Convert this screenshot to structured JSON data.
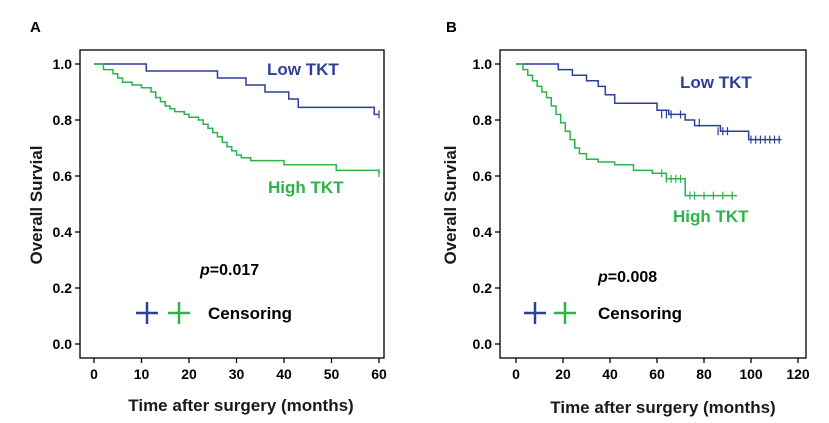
{
  "colors": {
    "low": "#2e3f98",
    "high": "#2db34a",
    "axis": "#000000"
  },
  "chart_data": [
    {
      "type": "line",
      "panel": "A",
      "xlabel": "Time after surgery (months)",
      "ylabel": "Overall Survial",
      "xlim": [
        0,
        60
      ],
      "ylim": [
        0,
        1.0
      ],
      "xticks": [
        0,
        10,
        20,
        30,
        40,
        50,
        60
      ],
      "yticks": [
        0.0,
        0.2,
        0.4,
        0.6,
        0.8,
        1.0
      ],
      "xtick_labels": [
        "0",
        "10",
        "20",
        "30",
        "40",
        "50",
        "60"
      ],
      "ytick_labels": [
        "0.0",
        "0.2",
        "0.4",
        "0.6",
        "0.8",
        "1.0"
      ],
      "p_prefix": "p",
      "p_value": "=0.017",
      "legend_text": "Censoring",
      "series": [
        {
          "name": "Low TKT",
          "color_key": "low",
          "x": [
            0,
            4,
            11,
            26,
            32,
            36,
            41,
            43,
            59,
            60
          ],
          "y": [
            1.0,
            1.0,
            0.975,
            0.95,
            0.925,
            0.9,
            0.875,
            0.845,
            0.82,
            0.82
          ],
          "censor": [
            [
              60,
              0.82
            ]
          ]
        },
        {
          "name": "High TKT",
          "color_key": "high",
          "x": [
            0,
            2,
            4,
            5,
            6,
            8,
            10,
            12,
            13,
            14,
            15,
            16,
            17,
            19,
            20,
            22,
            23,
            24,
            25,
            26,
            27,
            28,
            29,
            30,
            31,
            33,
            40,
            51,
            60
          ],
          "y": [
            1.0,
            0.98,
            0.965,
            0.95,
            0.935,
            0.925,
            0.915,
            0.9,
            0.88,
            0.865,
            0.85,
            0.84,
            0.83,
            0.82,
            0.81,
            0.8,
            0.785,
            0.77,
            0.755,
            0.74,
            0.72,
            0.705,
            0.69,
            0.675,
            0.665,
            0.655,
            0.64,
            0.62,
            0.61
          ],
          "censor": [
            [
              60,
              0.61
            ]
          ]
        }
      ]
    },
    {
      "type": "line",
      "panel": "B",
      "xlabel": "Time after surgery (months)",
      "ylabel": "Overall Survial",
      "xlim": [
        0,
        120
      ],
      "ylim": [
        0,
        1.0
      ],
      "xticks": [
        0,
        20,
        40,
        60,
        80,
        100,
        120
      ],
      "yticks": [
        0.0,
        0.2,
        0.4,
        0.6,
        0.8,
        1.0
      ],
      "xtick_labels": [
        "0",
        "20",
        "40",
        "60",
        "80",
        "100",
        "120"
      ],
      "ytick_labels": [
        "0.0",
        "0.2",
        "0.4",
        "0.6",
        "0.8",
        "1.0"
      ],
      "p_prefix": "p",
      "p_value": "=0.008",
      "legend_text": "Censoring",
      "series": [
        {
          "name": "Low TKT",
          "color_key": "low",
          "x": [
            0,
            8,
            18,
            24,
            30,
            35,
            38,
            42,
            60,
            65,
            72,
            76,
            87,
            99,
            113
          ],
          "y": [
            1.0,
            1.0,
            0.98,
            0.96,
            0.94,
            0.92,
            0.89,
            0.86,
            0.835,
            0.82,
            0.8,
            0.78,
            0.76,
            0.73,
            0.73
          ],
          "censor": [
            [
              62,
              0.82
            ],
            [
              64,
              0.82
            ],
            [
              66,
              0.82
            ],
            [
              70,
              0.82
            ],
            [
              78,
              0.79
            ],
            [
              86,
              0.76
            ],
            [
              88,
              0.76
            ],
            [
              90,
              0.76
            ],
            [
              100,
              0.73
            ],
            [
              102,
              0.73
            ],
            [
              104,
              0.73
            ],
            [
              106,
              0.73
            ],
            [
              108,
              0.73
            ],
            [
              110,
              0.73
            ],
            [
              112,
              0.73
            ]
          ]
        },
        {
          "name": "High TKT",
          "color_key": "high",
          "x": [
            0,
            3,
            5,
            7,
            9,
            11,
            13,
            15,
            17,
            19,
            21,
            23,
            25,
            27,
            30,
            35,
            42,
            50,
            58,
            64,
            72,
            94
          ],
          "y": [
            1.0,
            0.98,
            0.96,
            0.94,
            0.92,
            0.9,
            0.88,
            0.85,
            0.82,
            0.79,
            0.76,
            0.73,
            0.7,
            0.68,
            0.66,
            0.65,
            0.64,
            0.62,
            0.61,
            0.59,
            0.53,
            0.53
          ],
          "censor": [
            [
              62,
              0.61
            ],
            [
              64,
              0.59
            ],
            [
              66,
              0.59
            ],
            [
              68,
              0.59
            ],
            [
              70,
              0.59
            ],
            [
              74,
              0.53
            ],
            [
              76,
              0.53
            ],
            [
              80,
              0.53
            ],
            [
              84,
              0.53
            ],
            [
              88,
              0.53
            ],
            [
              92,
              0.53
            ]
          ]
        }
      ]
    }
  ]
}
